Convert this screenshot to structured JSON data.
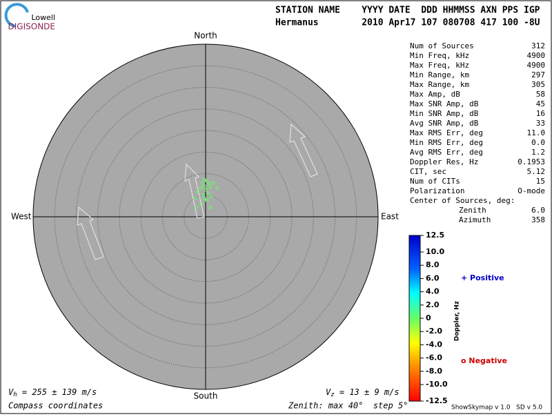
{
  "logo": {
    "top": "Lowell",
    "bottom": "DIGISONDE"
  },
  "header": {
    "labels": "STATION NAME    YYYY DATE  DDD HHMMSS AXN PPS IGP",
    "values": "Hermanus        2010 Apr17 107 080708 417 100 -8U"
  },
  "stats": [
    {
      "label": "Num of Sources",
      "value": "312"
    },
    {
      "label": "Min Freq, kHz",
      "value": "4900"
    },
    {
      "label": "Max Freq, kHz",
      "value": "4900"
    },
    {
      "label": "Min Range, km",
      "value": "297"
    },
    {
      "label": "Max Range, km",
      "value": "305"
    },
    {
      "label": "Max Amp, dB",
      "value": "58"
    },
    {
      "label": "Max SNR Amp, dB",
      "value": "45"
    },
    {
      "label": "Min SNR Amp, dB",
      "value": "16"
    },
    {
      "label": "Avg SNR Amp, dB",
      "value": "33"
    },
    {
      "label": "Max RMS Err, deg",
      "value": "11.0"
    },
    {
      "label": "Min RMS Err, deg",
      "value": "0.0"
    },
    {
      "label": "Avg RMS Err, deg",
      "value": "1.2"
    },
    {
      "label": "Doppler Res, Hz",
      "value": "0.1953"
    },
    {
      "label": "CIT, sec",
      "value": "5.12"
    },
    {
      "label": "Num of CITs",
      "value": "15"
    },
    {
      "label": "Polarization",
      "value": "O-mode"
    }
  ],
  "center": {
    "title": "Center of Sources, deg:",
    "rows": [
      {
        "label": "Zenith",
        "value": "6.0"
      },
      {
        "label": "Azimuth",
        "value": "358"
      }
    ]
  },
  "compass": {
    "north": "North",
    "south": "South",
    "east": "East",
    "west": "West"
  },
  "footer": {
    "vh": {
      "symbol": "V",
      "sub": "h",
      "text": " = 255 ± 139 m/s"
    },
    "vz": {
      "symbol": "V",
      "sub": "z",
      "text": " = 13 ± 9 m/s"
    },
    "coords": "Compass coordinates",
    "zenith": "Zenith: max 40°  step 5°",
    "version": "ShowSkymap v 1.0   SD v 5.0"
  },
  "chart_data": {
    "type": "skymap",
    "xlim": [
      -40,
      40
    ],
    "ylim": [
      -40,
      40
    ],
    "color": "#66ff66",
    "x": [
      -0.3,
      0.3,
      -0.8,
      0.8,
      -0.2,
      -1.1,
      1.1,
      2.7,
      0.2,
      -1.8,
      0.6,
      -0.5,
      1.3,
      -2.4,
      0.3,
      -1.0,
      1.1,
      -2.2,
      1.8,
      -0.3
    ],
    "y": [
      8.6,
      8.3,
      7.8,
      7.7,
      7.0,
      6.7,
      6.9,
      6.7,
      6.2,
      5.8,
      5.4,
      5.0,
      4.6,
      4.3,
      3.8,
      3.0,
      2.2,
      2.2,
      7.8,
      4.2
    ],
    "colorbar": {
      "title": "Doppler, Hz",
      "clim": [
        -12.5,
        12.5
      ],
      "cticks": [
        12.5,
        {
          "value": 10,
          "label": "10.0"
        },
        {
          "value": 8,
          "label": "8.0"
        },
        {
          "value": 6,
          "label": "6.0"
        },
        {
          "value": 4,
          "label": "4.0"
        },
        {
          "value": 2,
          "label": "2.0"
        },
        0,
        {
          "value": -2,
          "label": "-2.0"
        },
        {
          "value": -4,
          "label": "-4.0"
        },
        {
          "value": -6,
          "label": "-6.0"
        },
        {
          "value": -8,
          "label": "-8.0"
        },
        {
          "value": -10,
          "label": "-10.0"
        },
        -12.5
      ]
    },
    "legend": {
      "positive": "+ Positive",
      "negative": "o Negative"
    }
  }
}
